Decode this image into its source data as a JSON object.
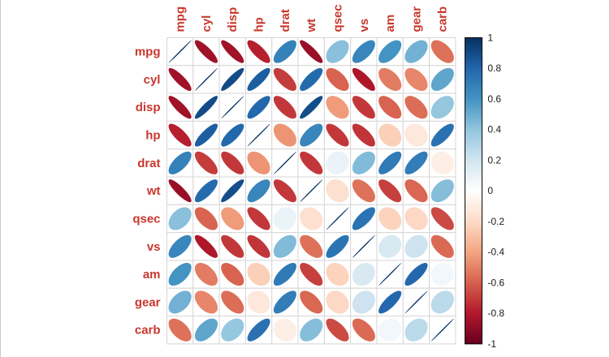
{
  "chart_data": {
    "type": "heatmap",
    "subtype": "correlation-matrix-ellipse",
    "title": "",
    "xlabel": "",
    "ylabel": "",
    "grid": true,
    "legend_position": "right",
    "categories": [
      "mpg",
      "cyl",
      "disp",
      "hp",
      "drat",
      "wt",
      "qsec",
      "vs",
      "am",
      "gear",
      "carb"
    ],
    "matrix": [
      [
        1.0,
        -0.85,
        -0.85,
        -0.78,
        0.68,
        -0.87,
        0.42,
        0.66,
        0.6,
        0.48,
        -0.55
      ],
      [
        -0.85,
        1.0,
        0.9,
        0.83,
        -0.7,
        0.78,
        -0.59,
        -0.81,
        -0.52,
        -0.49,
        0.53
      ],
      [
        -0.85,
        0.9,
        1.0,
        0.79,
        -0.71,
        0.89,
        -0.43,
        -0.71,
        -0.59,
        -0.56,
        0.39
      ],
      [
        -0.78,
        0.83,
        0.79,
        1.0,
        -0.45,
        0.66,
        -0.71,
        -0.72,
        -0.24,
        -0.13,
        0.75
      ],
      [
        0.68,
        -0.7,
        -0.71,
        -0.45,
        1.0,
        -0.71,
        0.09,
        0.44,
        0.71,
        0.7,
        -0.09
      ],
      [
        -0.87,
        0.78,
        0.89,
        0.66,
        -0.71,
        1.0,
        -0.17,
        -0.55,
        -0.69,
        -0.58,
        0.43
      ],
      [
        0.42,
        -0.59,
        -0.43,
        -0.71,
        0.09,
        -0.17,
        1.0,
        0.74,
        -0.23,
        -0.21,
        -0.66
      ],
      [
        0.66,
        -0.81,
        -0.71,
        -0.72,
        0.44,
        -0.55,
        0.74,
        1.0,
        0.17,
        0.21,
        -0.57
      ],
      [
        0.6,
        -0.52,
        -0.59,
        -0.24,
        0.71,
        -0.69,
        -0.23,
        0.17,
        1.0,
        0.79,
        0.06
      ],
      [
        0.48,
        -0.49,
        -0.56,
        -0.13,
        0.7,
        -0.58,
        -0.21,
        0.21,
        0.79,
        1.0,
        0.27
      ],
      [
        -0.55,
        0.53,
        0.39,
        0.75,
        -0.09,
        0.43,
        -0.66,
        -0.57,
        0.06,
        0.27,
        1.0
      ]
    ],
    "value_range": [
      -1,
      1
    ],
    "colorbar": {
      "position": "right",
      "ticks": [
        "1",
        "0.8",
        "0.6",
        "0.4",
        "0.2",
        "0",
        "-0.2",
        "-0.4",
        "-0.6",
        "-0.8",
        "-1"
      ],
      "tick_values": [
        1,
        0.8,
        0.6,
        0.4,
        0.2,
        0,
        -0.2,
        -0.4,
        -0.6,
        -0.8,
        -1
      ]
    },
    "palette": {
      "stops": [
        -1,
        -0.8,
        -0.6,
        -0.4,
        -0.2,
        0,
        0.2,
        0.4,
        0.6,
        0.8,
        1
      ],
      "colors": [
        "#67001F",
        "#B2182B",
        "#D6604D",
        "#F4A582",
        "#FDDBC7",
        "#FFFFFF",
        "#D1E5F0",
        "#92C5DE",
        "#4393C3",
        "#2166AC",
        "#053061"
      ]
    },
    "styles": {
      "label_color": "#C8372D",
      "tick_color": "#1A1A1A",
      "grid_color": "#D6D6D6",
      "colorbar_border": "#000000",
      "background": "#FFFFFF"
    }
  }
}
